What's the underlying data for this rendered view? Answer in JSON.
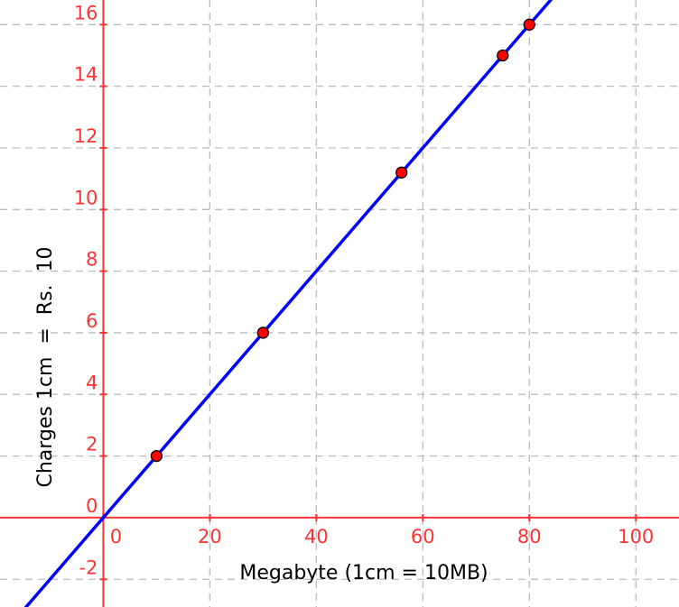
{
  "chart_data": {
    "type": "line",
    "title": "",
    "xlabel": "Megabyte (1cm = 10MB)",
    "ylabel": "Charges 1cm  =  Rs.  10",
    "xlim": [
      -19.4,
      108.1
    ],
    "ylim": [
      -2.9,
      16.8
    ],
    "grid": true,
    "x_ticks": [
      0,
      20,
      40,
      60,
      80,
      100
    ],
    "y_ticks": [
      -2,
      0,
      2,
      4,
      6,
      8,
      10,
      12,
      14,
      16
    ],
    "line": {
      "slope": 0.2,
      "intercept": 0,
      "color": "#0000ff"
    },
    "points": [
      {
        "x": 10,
        "y": 2
      },
      {
        "x": 30,
        "y": 6
      },
      {
        "x": 56,
        "y": 11.2
      },
      {
        "x": 75,
        "y": 15
      },
      {
        "x": 80,
        "y": 16
      }
    ],
    "colors": {
      "axis": "#ff3333",
      "grid": "#bbbbbb",
      "point": "#ff0000",
      "point_edge": "#000000"
    }
  }
}
